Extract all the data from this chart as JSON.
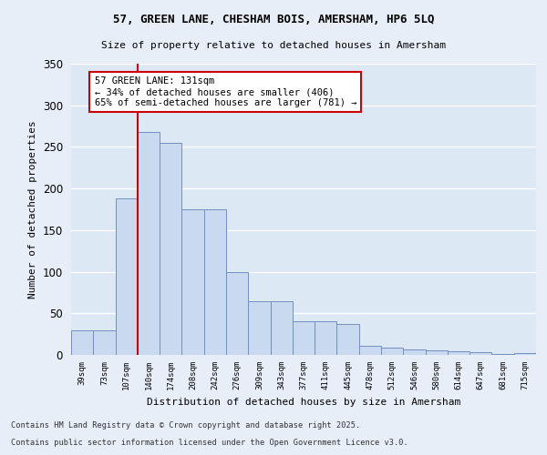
{
  "title1": "57, GREEN LANE, CHESHAM BOIS, AMERSHAM, HP6 5LQ",
  "title2": "Size of property relative to detached houses in Amersham",
  "xlabel": "Distribution of detached houses by size in Amersham",
  "ylabel": "Number of detached properties",
  "categories": [
    "39sqm",
    "73sqm",
    "107sqm",
    "140sqm",
    "174sqm",
    "208sqm",
    "242sqm",
    "276sqm",
    "309sqm",
    "343sqm",
    "377sqm",
    "411sqm",
    "445sqm",
    "478sqm",
    "512sqm",
    "546sqm",
    "580sqm",
    "614sqm",
    "647sqm",
    "681sqm",
    "715sqm"
  ],
  "values": [
    29,
    29,
    188,
    268,
    255,
    175,
    175,
    99,
    65,
    65,
    40,
    40,
    37,
    11,
    9,
    7,
    5,
    4,
    3,
    1,
    2
  ],
  "bar_color": "#c9d9f0",
  "bar_edge_color": "#7090c0",
  "background_color": "#dde8f5",
  "fig_background": "#e8eef8",
  "grid_color": "#ffffff",
  "annotation_text": "57 GREEN LANE: 131sqm\n← 34% of detached houses are smaller (406)\n65% of semi-detached houses are larger (781) →",
  "annotation_box_color": "#ffffff",
  "annotation_box_edge": "#cc0000",
  "footnote1": "Contains HM Land Registry data © Crown copyright and database right 2025.",
  "footnote2": "Contains public sector information licensed under the Open Government Licence v3.0.",
  "ylim": [
    0,
    350
  ],
  "yticks": [
    0,
    50,
    100,
    150,
    200,
    250,
    300,
    350
  ]
}
